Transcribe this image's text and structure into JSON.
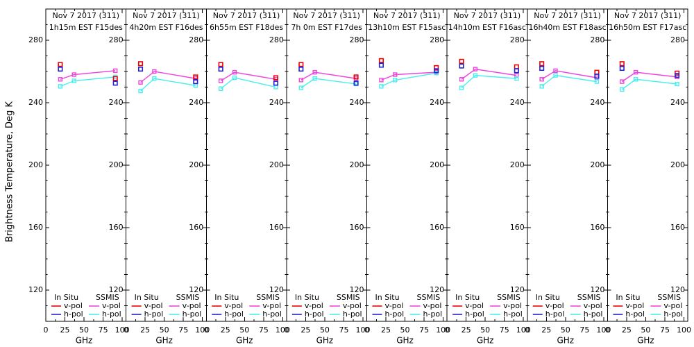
{
  "y_axis": {
    "label": "Brightness Temperature, Deg K",
    "ticks": [
      120,
      160,
      200,
      240,
      280
    ],
    "minor_step": 10,
    "range": [
      100,
      300
    ]
  },
  "x_axis": {
    "label": "GHz",
    "ticks": [
      0,
      25,
      50,
      75,
      100
    ],
    "minor_ticks": [
      12.5,
      37.5,
      62.5,
      87.5
    ],
    "displayed_max": 100
  },
  "legend": {
    "insitu_title": "In Situ",
    "ssmis_title": "SSMIS",
    "vpol_label": "v-pol",
    "hpol_label": "h-pol"
  },
  "colors": {
    "insitu_v": "#ee0000",
    "insitu_h": "#2222cc",
    "ssmis_v": "#ee44dd",
    "ssmis_h": "#4aeeee",
    "axis": "#000000",
    "background": "#ffffff"
  },
  "chart_data": {
    "type": "line",
    "x_unit": "GHz",
    "y_unit": "Deg K",
    "panels": [
      {
        "line1": "Nov 7 2017 (311)",
        "line2": "1h15m EST F15des",
        "series": [
          {
            "name": "In Situ v-pol",
            "color_key": "insitu_v",
            "line": false,
            "x": [
              19,
              91
            ],
            "y": [
              264.5,
              255.5
            ]
          },
          {
            "name": "In Situ h-pol",
            "color_key": "insitu_h",
            "line": false,
            "x": [
              19,
              91
            ],
            "y": [
              261.5,
              252.5
            ]
          },
          {
            "name": "SSMIS v-pol",
            "color_key": "ssmis_v",
            "line": true,
            "x": [
              19,
              37,
              91
            ],
            "y": [
              255,
              258,
              260.5
            ]
          },
          {
            "name": "SSMIS h-pol",
            "color_key": "ssmis_h",
            "line": true,
            "x": [
              19,
              37,
              91
            ],
            "y": [
              250.5,
              254,
              256.5
            ]
          }
        ]
      },
      {
        "line1": "Nov 7 2017 (311)",
        "line2": "4h20m EST F16des",
        "series": [
          {
            "name": "In Situ v-pol",
            "color_key": "insitu_v",
            "line": false,
            "x": [
              19,
              91
            ],
            "y": [
              265,
              256.5
            ]
          },
          {
            "name": "In Situ h-pol",
            "color_key": "insitu_h",
            "line": false,
            "x": [
              19,
              91
            ],
            "y": [
              261.5,
              253.5
            ]
          },
          {
            "name": "SSMIS v-pol",
            "color_key": "ssmis_v",
            "line": true,
            "x": [
              19,
              37,
              91
            ],
            "y": [
              253,
              260,
              255.5
            ]
          },
          {
            "name": "SSMIS h-pol",
            "color_key": "ssmis_h",
            "line": true,
            "x": [
              19,
              37,
              91
            ],
            "y": [
              247.5,
              255.5,
              251
            ]
          }
        ]
      },
      {
        "line1": "Nov 7 2017 (311)",
        "line2": "6h55m EST F18des",
        "series": [
          {
            "name": "In Situ v-pol",
            "color_key": "insitu_v",
            "line": false,
            "x": [
              19,
              91
            ],
            "y": [
              264.5,
              256
            ]
          },
          {
            "name": "In Situ h-pol",
            "color_key": "insitu_h",
            "line": false,
            "x": [
              19,
              91
            ],
            "y": [
              261.5,
              252.5
            ]
          },
          {
            "name": "SSMIS v-pol",
            "color_key": "ssmis_v",
            "line": true,
            "x": [
              19,
              37,
              91
            ],
            "y": [
              254,
              259.5,
              255
            ]
          },
          {
            "name": "SSMIS h-pol",
            "color_key": "ssmis_h",
            "line": true,
            "x": [
              19,
              37,
              91
            ],
            "y": [
              249,
              256,
              250
            ]
          }
        ]
      },
      {
        "line1": "Nov 7 2017 (311)",
        "line2": "7h 0m EST F17des",
        "series": [
          {
            "name": "In Situ v-pol",
            "color_key": "insitu_v",
            "line": false,
            "x": [
              19,
              91
            ],
            "y": [
              264.5,
              256.5
            ]
          },
          {
            "name": "In Situ h-pol",
            "color_key": "insitu_h",
            "line": false,
            "x": [
              19,
              91
            ],
            "y": [
              261.5,
              252.5
            ]
          },
          {
            "name": "SSMIS v-pol",
            "color_key": "ssmis_v",
            "line": true,
            "x": [
              19,
              37,
              91
            ],
            "y": [
              254.5,
              259.5,
              255.5
            ]
          },
          {
            "name": "SSMIS h-pol",
            "color_key": "ssmis_h",
            "line": true,
            "x": [
              19,
              37,
              91
            ],
            "y": [
              249.5,
              255.5,
              252
            ]
          }
        ]
      },
      {
        "line1": "Nov 7 2017 (311)",
        "line2": "13h10m EST F15asc",
        "series": [
          {
            "name": "In Situ v-pol",
            "color_key": "insitu_v",
            "line": false,
            "x": [
              19,
              91
            ],
            "y": [
              267,
              262.5
            ]
          },
          {
            "name": "In Situ h-pol",
            "color_key": "insitu_h",
            "line": false,
            "x": [
              19,
              91
            ],
            "y": [
              264,
              260.5
            ]
          },
          {
            "name": "SSMIS v-pol",
            "color_key": "ssmis_v",
            "line": true,
            "x": [
              19,
              37,
              91
            ],
            "y": [
              254.5,
              258,
              259.5
            ]
          },
          {
            "name": "SSMIS h-pol",
            "color_key": "ssmis_h",
            "line": true,
            "x": [
              19,
              37,
              91
            ],
            "y": [
              250.5,
              254.5,
              259
            ]
          }
        ]
      },
      {
        "line1": "Nov 7 2017 (311)",
        "line2": "14h10m EST F16asc",
        "series": [
          {
            "name": "In Situ v-pol",
            "color_key": "insitu_v",
            "line": false,
            "x": [
              19,
              91
            ],
            "y": [
              266.5,
              263
            ]
          },
          {
            "name": "In Situ h-pol",
            "color_key": "insitu_h",
            "line": false,
            "x": [
              19,
              91
            ],
            "y": [
              263.5,
              260.5
            ]
          },
          {
            "name": "SSMIS v-pol",
            "color_key": "ssmis_v",
            "line": true,
            "x": [
              19,
              37,
              91
            ],
            "y": [
              255,
              261.5,
              257.5
            ]
          },
          {
            "name": "SSMIS h-pol",
            "color_key": "ssmis_h",
            "line": true,
            "x": [
              19,
              37,
              91
            ],
            "y": [
              249.5,
              257.5,
              255.5
            ]
          }
        ]
      },
      {
        "line1": "Nov 7 2017 (311)",
        "line2": "16h40m EST F18asc",
        "series": [
          {
            "name": "In Situ v-pol",
            "color_key": "insitu_v",
            "line": false,
            "x": [
              19,
              91
            ],
            "y": [
              265,
              259.5
            ]
          },
          {
            "name": "In Situ h-pol",
            "color_key": "insitu_h",
            "line": false,
            "x": [
              19,
              91
            ],
            "y": [
              262,
              257
            ]
          },
          {
            "name": "SSMIS v-pol",
            "color_key": "ssmis_v",
            "line": true,
            "x": [
              19,
              37,
              91
            ],
            "y": [
              255,
              260.5,
              256
            ]
          },
          {
            "name": "SSMIS h-pol",
            "color_key": "ssmis_h",
            "line": true,
            "x": [
              19,
              37,
              91
            ],
            "y": [
              250.5,
              257.5,
              253.5
            ]
          }
        ]
      },
      {
        "line1": "Nov 7 2017 (311)",
        "line2": "16h50m EST F17asc",
        "series": [
          {
            "name": "In Situ v-pol",
            "color_key": "insitu_v",
            "line": false,
            "x": [
              19,
              91
            ],
            "y": [
              265,
              259
            ]
          },
          {
            "name": "In Situ h-pol",
            "color_key": "insitu_h",
            "line": false,
            "x": [
              19,
              91
            ],
            "y": [
              262,
              257.5
            ]
          },
          {
            "name": "SSMIS v-pol",
            "color_key": "ssmis_v",
            "line": true,
            "x": [
              19,
              37,
              91
            ],
            "y": [
              253.5,
              259.5,
              256.5
            ]
          },
          {
            "name": "SSMIS h-pol",
            "color_key": "ssmis_h",
            "line": true,
            "x": [
              19,
              37,
              91
            ],
            "y": [
              248.5,
              255,
              252
            ]
          }
        ]
      }
    ]
  }
}
